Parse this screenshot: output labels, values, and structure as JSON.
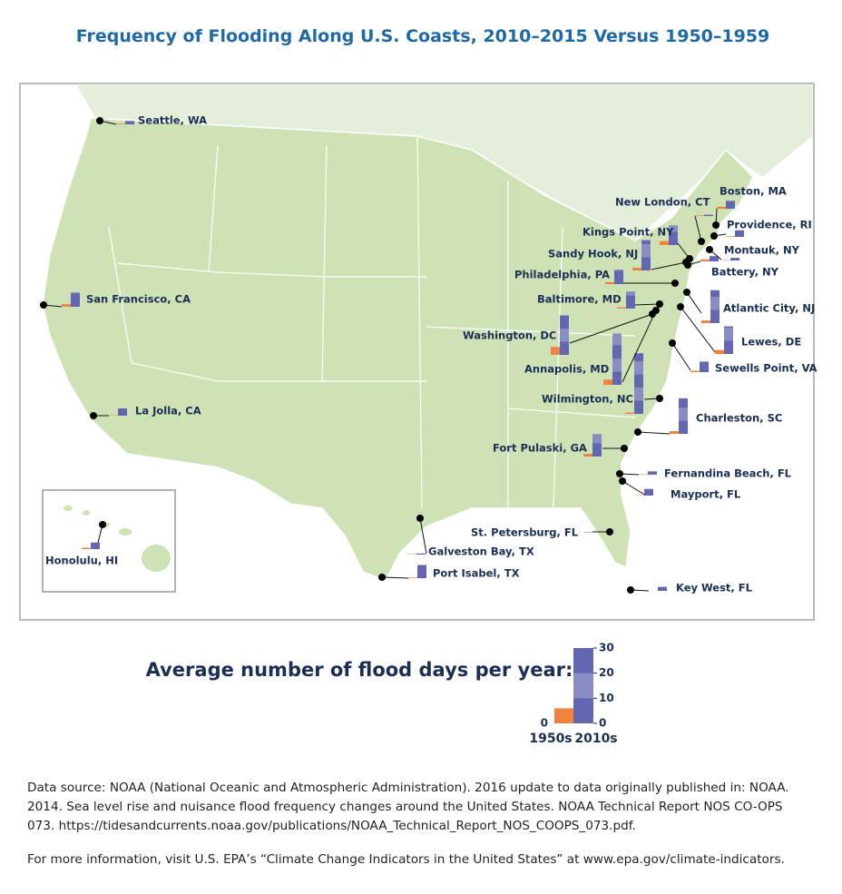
{
  "title": "Frequency of Flooding Along U.S. Coasts, 2010–2015 Versus 1950–1959",
  "map": {
    "stations": [
      {
        "name": "Seattle, WA",
        "values": [
          0.5,
          2.5
        ]
      },
      {
        "name": "San Francisco, CA",
        "values": [
          2,
          11
        ]
      },
      {
        "name": "La Jolla, CA",
        "values": [
          0.3,
          5.5
        ]
      },
      {
        "name": "Honolulu, HI",
        "values": [
          1,
          5
        ]
      },
      {
        "name": "Port Isabel, TX",
        "values": [
          0.5,
          10
        ]
      },
      {
        "name": "Galveston Bay, TX",
        "values": [
          0.3,
          0.8
        ]
      },
      {
        "name": "St. Petersburg, FL",
        "values": [
          0,
          0.3
        ]
      },
      {
        "name": "Key West, FL",
        "values": [
          0,
          3
        ]
      },
      {
        "name": "Mayport, FL",
        "values": [
          0.3,
          5
        ]
      },
      {
        "name": "Fernandina Beach, FL",
        "values": [
          0.3,
          2.5
        ]
      },
      {
        "name": "Fort Pulaski, GA",
        "values": [
          2,
          17
        ]
      },
      {
        "name": "Charleston, SC",
        "values": [
          2,
          27
        ]
      },
      {
        "name": "Wilmington, NC",
        "values": [
          1,
          46
        ]
      },
      {
        "name": "Sewells Point, VA",
        "values": [
          1,
          8
        ]
      },
      {
        "name": "Annapolis, MD",
        "values": [
          4,
          39
        ]
      },
      {
        "name": "Washington, DC",
        "values": [
          6,
          30
        ]
      },
      {
        "name": "Baltimore, MD",
        "values": [
          1,
          13
        ]
      },
      {
        "name": "Lewes, DE",
        "values": [
          3,
          21
        ]
      },
      {
        "name": "Atlantic City, NJ",
        "values": [
          2,
          25
        ]
      },
      {
        "name": "Philadelphia, PA",
        "values": [
          1.5,
          11
        ]
      },
      {
        "name": "Battery, NY",
        "values": [
          1.5,
          4
        ]
      },
      {
        "name": "Sandy Hook, NJ",
        "values": [
          2,
          23
        ]
      },
      {
        "name": "Kings Point, NY",
        "values": [
          3,
          15
        ]
      },
      {
        "name": "Montauk, NY",
        "values": [
          0.3,
          2
        ]
      },
      {
        "name": "Providence, RI",
        "values": [
          0.5,
          5
        ]
      },
      {
        "name": "New London, CT",
        "values": [
          0.5,
          1
        ]
      },
      {
        "name": "Boston, MA",
        "values": [
          1.5,
          6
        ]
      }
    ]
  },
  "legend": {
    "title": "Average number of flood days per year:",
    "ylim": [
      0,
      30
    ],
    "yticks": [
      0,
      10,
      20,
      30
    ],
    "left_ticks": [
      0
    ],
    "series": [
      {
        "name": "1950s",
        "color": "#f0823c",
        "value": 6
      },
      {
        "name": "2010s",
        "color": "#6366b0",
        "value": 30
      }
    ]
  },
  "footer": {
    "source": "Data source: NOAA (National Oceanic and Atmospheric Administration). 2016 update to data originally published in: NOAA. 2014. Sea level rise and nuisance flood frequency changes around the United States. NOAA Technical Report NOS CO-OPS 073. https://tidesandcurrents.noaa.gov/publications/NOAA_Technical_Report_NOS_COOPS_073.pdf.",
    "more": "For more information, visit U.S. EPA’s “Climate Change Indicators in the United States” at www.epa.gov/climate-indicators."
  }
}
